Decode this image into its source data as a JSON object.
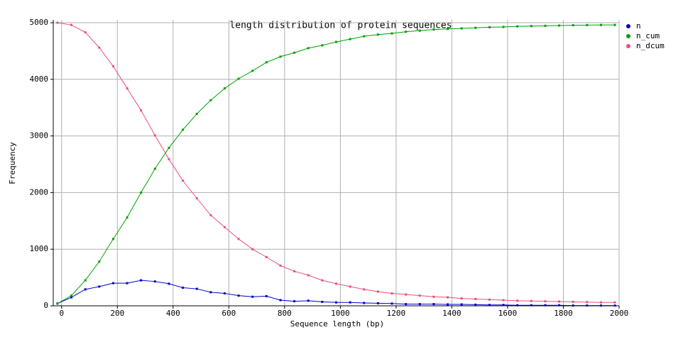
{
  "chart_data": {
    "type": "line",
    "title": "length distribution of protein sequences",
    "x_label": "Sequence length (bp)",
    "y_label": "Frequency",
    "x": [
      -15,
      35,
      85,
      135,
      185,
      235,
      285,
      335,
      385,
      435,
      485,
      535,
      585,
      635,
      685,
      735,
      785,
      835,
      885,
      935,
      985,
      1035,
      1085,
      1135,
      1185,
      1235,
      1285,
      1335,
      1385,
      1435,
      1485,
      1535,
      1585,
      1635,
      1685,
      1735,
      1785,
      1835,
      1885,
      1935,
      1985
    ],
    "series": [
      {
        "name": "n",
        "color": "#0000cc",
        "values": [
          40,
          150,
          290,
          340,
          400,
          400,
          450,
          430,
          390,
          320,
          300,
          240,
          220,
          180,
          160,
          170,
          100,
          80,
          90,
          70,
          60,
          60,
          50,
          45,
          40,
          30,
          30,
          30,
          25,
          25,
          20,
          15,
          15,
          10,
          10,
          10,
          10,
          5,
          5,
          5,
          5
        ]
      },
      {
        "name": "n_cum",
        "color": "#00a000",
        "values": [
          40,
          180,
          450,
          780,
          1180,
          1560,
          2000,
          2420,
          2790,
          3110,
          3390,
          3630,
          3840,
          4010,
          4150,
          4300,
          4400,
          4470,
          4550,
          4600,
          4660,
          4710,
          4760,
          4790,
          4810,
          4840,
          4860,
          4880,
          4890,
          4900,
          4910,
          4920,
          4925,
          4935,
          4940,
          4945,
          4950,
          4955,
          4958,
          4960,
          4960
        ]
      },
      {
        "name": "n_dcum",
        "color": "#e8507a",
        "values": [
          5000,
          4960,
          4830,
          4560,
          4230,
          3840,
          3450,
          3010,
          2590,
          2210,
          1900,
          1600,
          1390,
          1180,
          1000,
          860,
          710,
          610,
          540,
          450,
          390,
          340,
          290,
          250,
          220,
          200,
          180,
          160,
          150,
          130,
          120,
          110,
          100,
          90,
          85,
          80,
          75,
          70,
          65,
          60,
          60
        ]
      }
    ],
    "xlim": [
      -30,
      2000
    ],
    "xticks": [
      0,
      200,
      400,
      600,
      800,
      1000,
      1200,
      1400,
      1600,
      1800,
      2000
    ],
    "ylim": [
      0,
      5050
    ],
    "yticks": [
      0,
      1000,
      2000,
      3000,
      4000,
      5000
    ],
    "grid": true,
    "legend": "right"
  }
}
